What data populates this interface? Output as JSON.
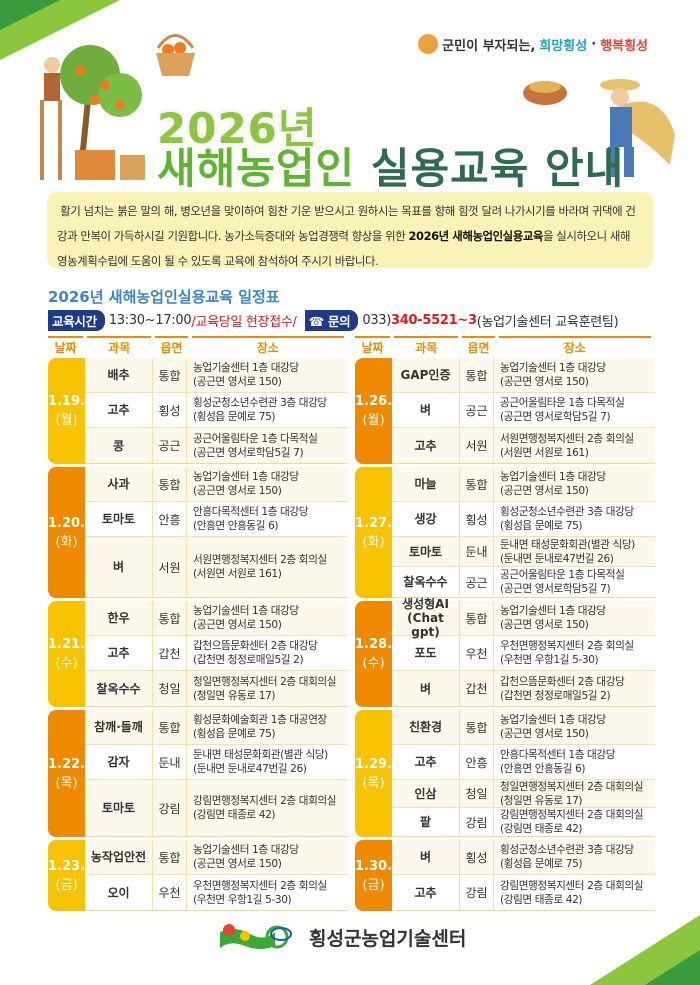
{
  "slogan": {
    "prefix": "군민이 부자되는,",
    "hope": "희망횡성",
    "dot": "·",
    "happy": "행복횡성"
  },
  "title": {
    "line1": "2026년",
    "line2a": "새해농업인",
    "line2b": "실용교육 안내"
  },
  "intro": {
    "text1": "활기 넘치는 붉은 말의 해, 병오년을 맞이하여 힘찬 기운 받으시고 원하시는 목표를 향해 힘껏 달려 나가시기를 바라며 귀댁에 건강과 만복이 가득하시길 기원합니다. 농가소득증대와 농업경쟁력 향상을 위한 ",
    "bold": "2026년 새해농업인실용교육",
    "text2": "을 실시하오니 새해 영농계획수립에 도움이 될 수 있도록 교육에 참석하여 주시기 바랍니다."
  },
  "schedule": {
    "title": "2026년 새해농업인실용교육 일정표",
    "time_label": "교육시간",
    "time": "13:30~17:00",
    "note": "/교육당일 현장접수/",
    "contact_label": "☎ 문의",
    "phone_prefix": "033)",
    "phone": "340-5521~3",
    "contact_team": "(농업기술센터 교육훈련팀)",
    "headers": [
      "날짜",
      "과목",
      "읍면",
      "장소"
    ],
    "colors": {
      "yellow": "#f7c200",
      "orange": "#ef8a00"
    },
    "left": [
      {
        "date": "1.19.",
        "weekday": "(월)",
        "color": "yellow",
        "rows": [
          {
            "subject": "배추",
            "town": "통합",
            "place": "농업기술센터 1층 대강당",
            "address": "(공근면 영서로 150)"
          },
          {
            "subject": "고추",
            "town": "횡성",
            "place": "횡성군청소년수련관 3층 대강당",
            "address": "(횡성읍 문예로 75)"
          },
          {
            "subject": "콩",
            "town": "공근",
            "place": "공근어울림타운 1층 다목적실",
            "address": "(공근면 영서로학담5길 7)"
          }
        ]
      },
      {
        "date": "1.20.",
        "weekday": "(화)",
        "color": "orange",
        "rows": [
          {
            "subject": "사과",
            "town": "통합",
            "place": "농업기술센터 1층 대강당",
            "address": "(공근면 영서로 150)"
          },
          {
            "subject": "토마토",
            "town": "안흥",
            "place": "안흥다목적센터 1층 대강당",
            "address": "(안흥면 안흥동길 6)"
          },
          {
            "subject": "벼",
            "town": "서원",
            "place": "서원면행정복지센터 2층 회의실",
            "address": "(서원면 서원로 161)"
          }
        ]
      },
      {
        "date": "1.21.",
        "weekday": "(수)",
        "color": "yellow",
        "rows": [
          {
            "subject": "한우",
            "town": "통합",
            "place": "농업기술센터 1층 대강당",
            "address": "(공근면 영서로 150)"
          },
          {
            "subject": "고추",
            "town": "갑천",
            "place": "갑천으뜸문화센터 2층 대강당",
            "address": "(갑천면 청정로매일5길 2)"
          },
          {
            "subject": "찰옥수수",
            "town": "청일",
            "place": "청일면행정복지센터 2층 대회의실",
            "address": "(청일면 유동로 17)"
          }
        ]
      },
      {
        "date": "1.22.",
        "weekday": "(목)",
        "color": "orange",
        "rows": [
          {
            "subject": "참깨·들깨",
            "town": "통합",
            "place": "횡성문화예술회관 1층 대공연장",
            "address": "(횡성읍 문예로 75)"
          },
          {
            "subject": "감자",
            "town": "둔내",
            "place": "둔내면 태성문화회관(별관 식당)",
            "address": "(둔내면 둔내로47번길 26)"
          },
          {
            "subject": "토마토",
            "town": "강림",
            "place": "강림면행정복지센터 2층 대회의실",
            "address": "(강림면 태종로 42)"
          }
        ]
      },
      {
        "date": "1.23.",
        "weekday": "(금)",
        "color": "yellow",
        "rows": [
          {
            "subject": "농작업안전",
            "town": "통합",
            "place": "농업기술센터 1층 대강당",
            "address": "(공근면 영서로 150)"
          },
          {
            "subject": "오이",
            "town": "우천",
            "place": "우천면행정복지센터 2층 회의실",
            "address": "(우천면 우항1길 5-30)"
          }
        ]
      }
    ],
    "right": [
      {
        "date": "1.26.",
        "weekday": "(월)",
        "color": "orange",
        "rows": [
          {
            "subject": "GAP인증",
            "town": "통합",
            "place": "농업기술센터 1층 대강당",
            "address": "(공근면 영서로 150)"
          },
          {
            "subject": "벼",
            "town": "공근",
            "place": "공근어울림타운 1층 다목적실",
            "address": "(공근면 영서로학담5길 7)"
          },
          {
            "subject": "고추",
            "town": "서원",
            "place": "서원면행정복지센터 2층 회의실",
            "address": "(서원면 서원로 161)"
          }
        ]
      },
      {
        "date": "1.27.",
        "weekday": "(화)",
        "color": "yellow",
        "rows": [
          {
            "subject": "마늘",
            "town": "통합",
            "place": "농업기술센터 1층 대강당",
            "address": "(공근면 영서로 150)"
          },
          {
            "subject": "생강",
            "town": "횡성",
            "place": "횡성군청소년수련관 3층 대강당",
            "address": "(횡성읍 문예로 75)"
          },
          {
            "subject": "토마토",
            "town": "둔내",
            "place": "둔내면 태성문화회관(별관 식당)",
            "address": "(둔내면 둔내로47번길 26)"
          },
          {
            "subject": "찰옥수수",
            "town": "공근",
            "place": "공근어울림타운 1층 다목적실",
            "address": "(공근면 영서로학담5길 7)"
          }
        ]
      },
      {
        "date": "1.28.",
        "weekday": "(수)",
        "color": "orange",
        "rows": [
          {
            "subject": "생성형AI (Chat gpt)",
            "town": "통합",
            "place": "농업기술센터 1층 대강당",
            "address": "(공근면 영서로 150)"
          },
          {
            "subject": "포도",
            "town": "우천",
            "place": "우천면행정복지센터 2층 회의실",
            "address": "(우천면 우항1길 5-30)"
          },
          {
            "subject": "벼",
            "town": "갑천",
            "place": "갑천으뜸문화센터 2층 대강당",
            "address": "(갑천면 청정로매일5길 2)"
          }
        ]
      },
      {
        "date": "1.29.",
        "weekday": "(목)",
        "color": "yellow",
        "rows": [
          {
            "subject": "친환경",
            "town": "통합",
            "place": "농업기술센터 1층 대강당",
            "address": "(공근면 영서로 150)"
          },
          {
            "subject": "고추",
            "town": "안흥",
            "place": "안흥다목적센터 1층 대강당",
            "address": "(안흥면 안흥동길 6)"
          },
          {
            "subject": "인삼",
            "town": "청일",
            "place": "청일면행정복지센터 2층 대회의실",
            "address": "(청일면 유동로 17)"
          },
          {
            "subject": "팥",
            "town": "강림",
            "place": "강림면행정복지센터 2층 대회의실",
            "address": "(강림면 태종로 42)"
          }
        ]
      },
      {
        "date": "1.30.",
        "weekday": "(금)",
        "color": "orange",
        "rows": [
          {
            "subject": "벼",
            "town": "횡성",
            "place": "횡성군청소년수련관 3층 대강당",
            "address": "(횡성읍 문예로 75)"
          },
          {
            "subject": "고추",
            "town": "강림",
            "place": "강림면행정복지센터 2층 대회의실",
            "address": "(강림면 태종로 42)"
          }
        ]
      }
    ]
  },
  "footer": {
    "org": "횡성군농업기술센터",
    "logo": "hoengseong-logo"
  }
}
